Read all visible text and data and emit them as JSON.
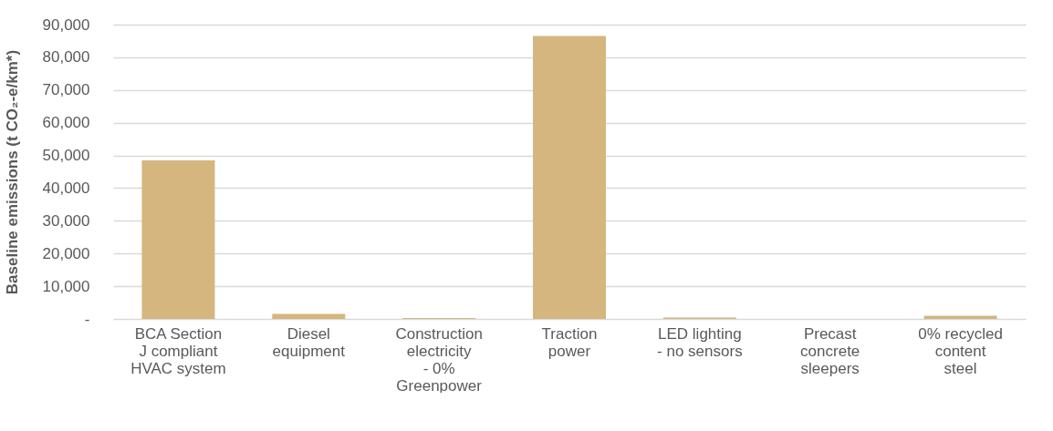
{
  "chart_data": {
    "type": "bar",
    "ylabel": "Baseline emissions (t CO₂-e/km*)",
    "categories": [
      "BCA Section J compliant HVAC system",
      "Diesel equipment",
      "Construction electricity - 0% Greenpower",
      "Traction power",
      "LED lighting - no sensors",
      "Precast concrete sleepers",
      "0% recycled content steel"
    ],
    "values": [
      48500,
      1500,
      300,
      86500,
      400,
      0,
      1000
    ],
    "color": "#d4b67e",
    "ylim": [
      0,
      90000
    ],
    "yticks": [
      {
        "value": 0,
        "label": "-"
      },
      {
        "value": 10000,
        "label": "10,000"
      },
      {
        "value": 20000,
        "label": "20,000"
      },
      {
        "value": 30000,
        "label": "30,000"
      },
      {
        "value": 40000,
        "label": "40,000"
      },
      {
        "value": 50000,
        "label": "50,000"
      },
      {
        "value": 60000,
        "label": "60,000"
      },
      {
        "value": 70000,
        "label": "70,000"
      },
      {
        "value": 80000,
        "label": "80,000"
      },
      {
        "value": 90000,
        "label": "90,000"
      }
    ],
    "grid": "y"
  }
}
